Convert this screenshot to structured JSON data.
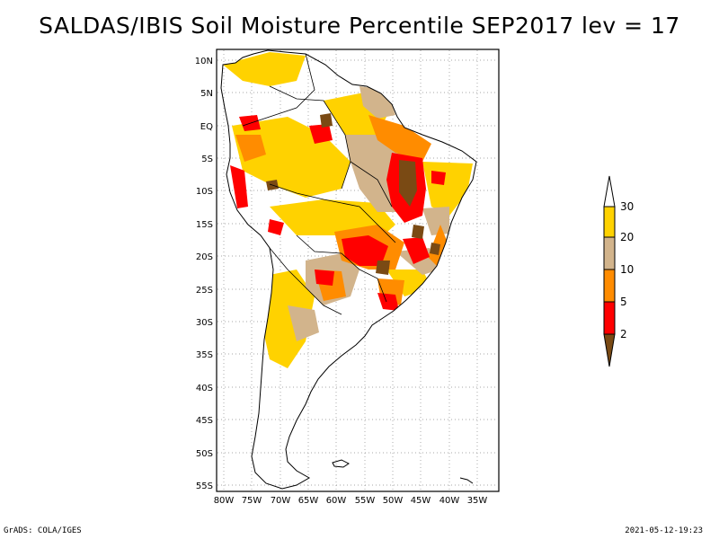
{
  "title": "SALDAS/IBIS Soil Moisture Percentile SEP2017 lev = 17",
  "footer": {
    "left": "GrADS: COLA/IGES",
    "right": "2021-05-12-19:23"
  },
  "map": {
    "projection": "latlon",
    "lon_range": [
      -81,
      -31
    ],
    "lat_range": [
      -56,
      12
    ],
    "lat_ticks": [
      "10N",
      "5N",
      "EQ",
      "5S",
      "10S",
      "15S",
      "20S",
      "25S",
      "30S",
      "35S",
      "40S",
      "45S",
      "50S",
      "55S"
    ],
    "lon_ticks": [
      "80W",
      "75W",
      "70W",
      "65W",
      "60W",
      "55W",
      "50W",
      "45W",
      "40W",
      "35W"
    ],
    "grid": "dotted"
  },
  "colorbar": {
    "labels": [
      "2",
      "5",
      "10",
      "20",
      "30"
    ],
    "colors": {
      "c_lt2": "#7a4a14",
      "c_2_5": "#ff0000",
      "c_5_10": "#ff8c00",
      "c_10_20": "#d2b48c",
      "c_20_30": "#ffd200",
      "c_gt30": "#ffffff"
    }
  }
}
